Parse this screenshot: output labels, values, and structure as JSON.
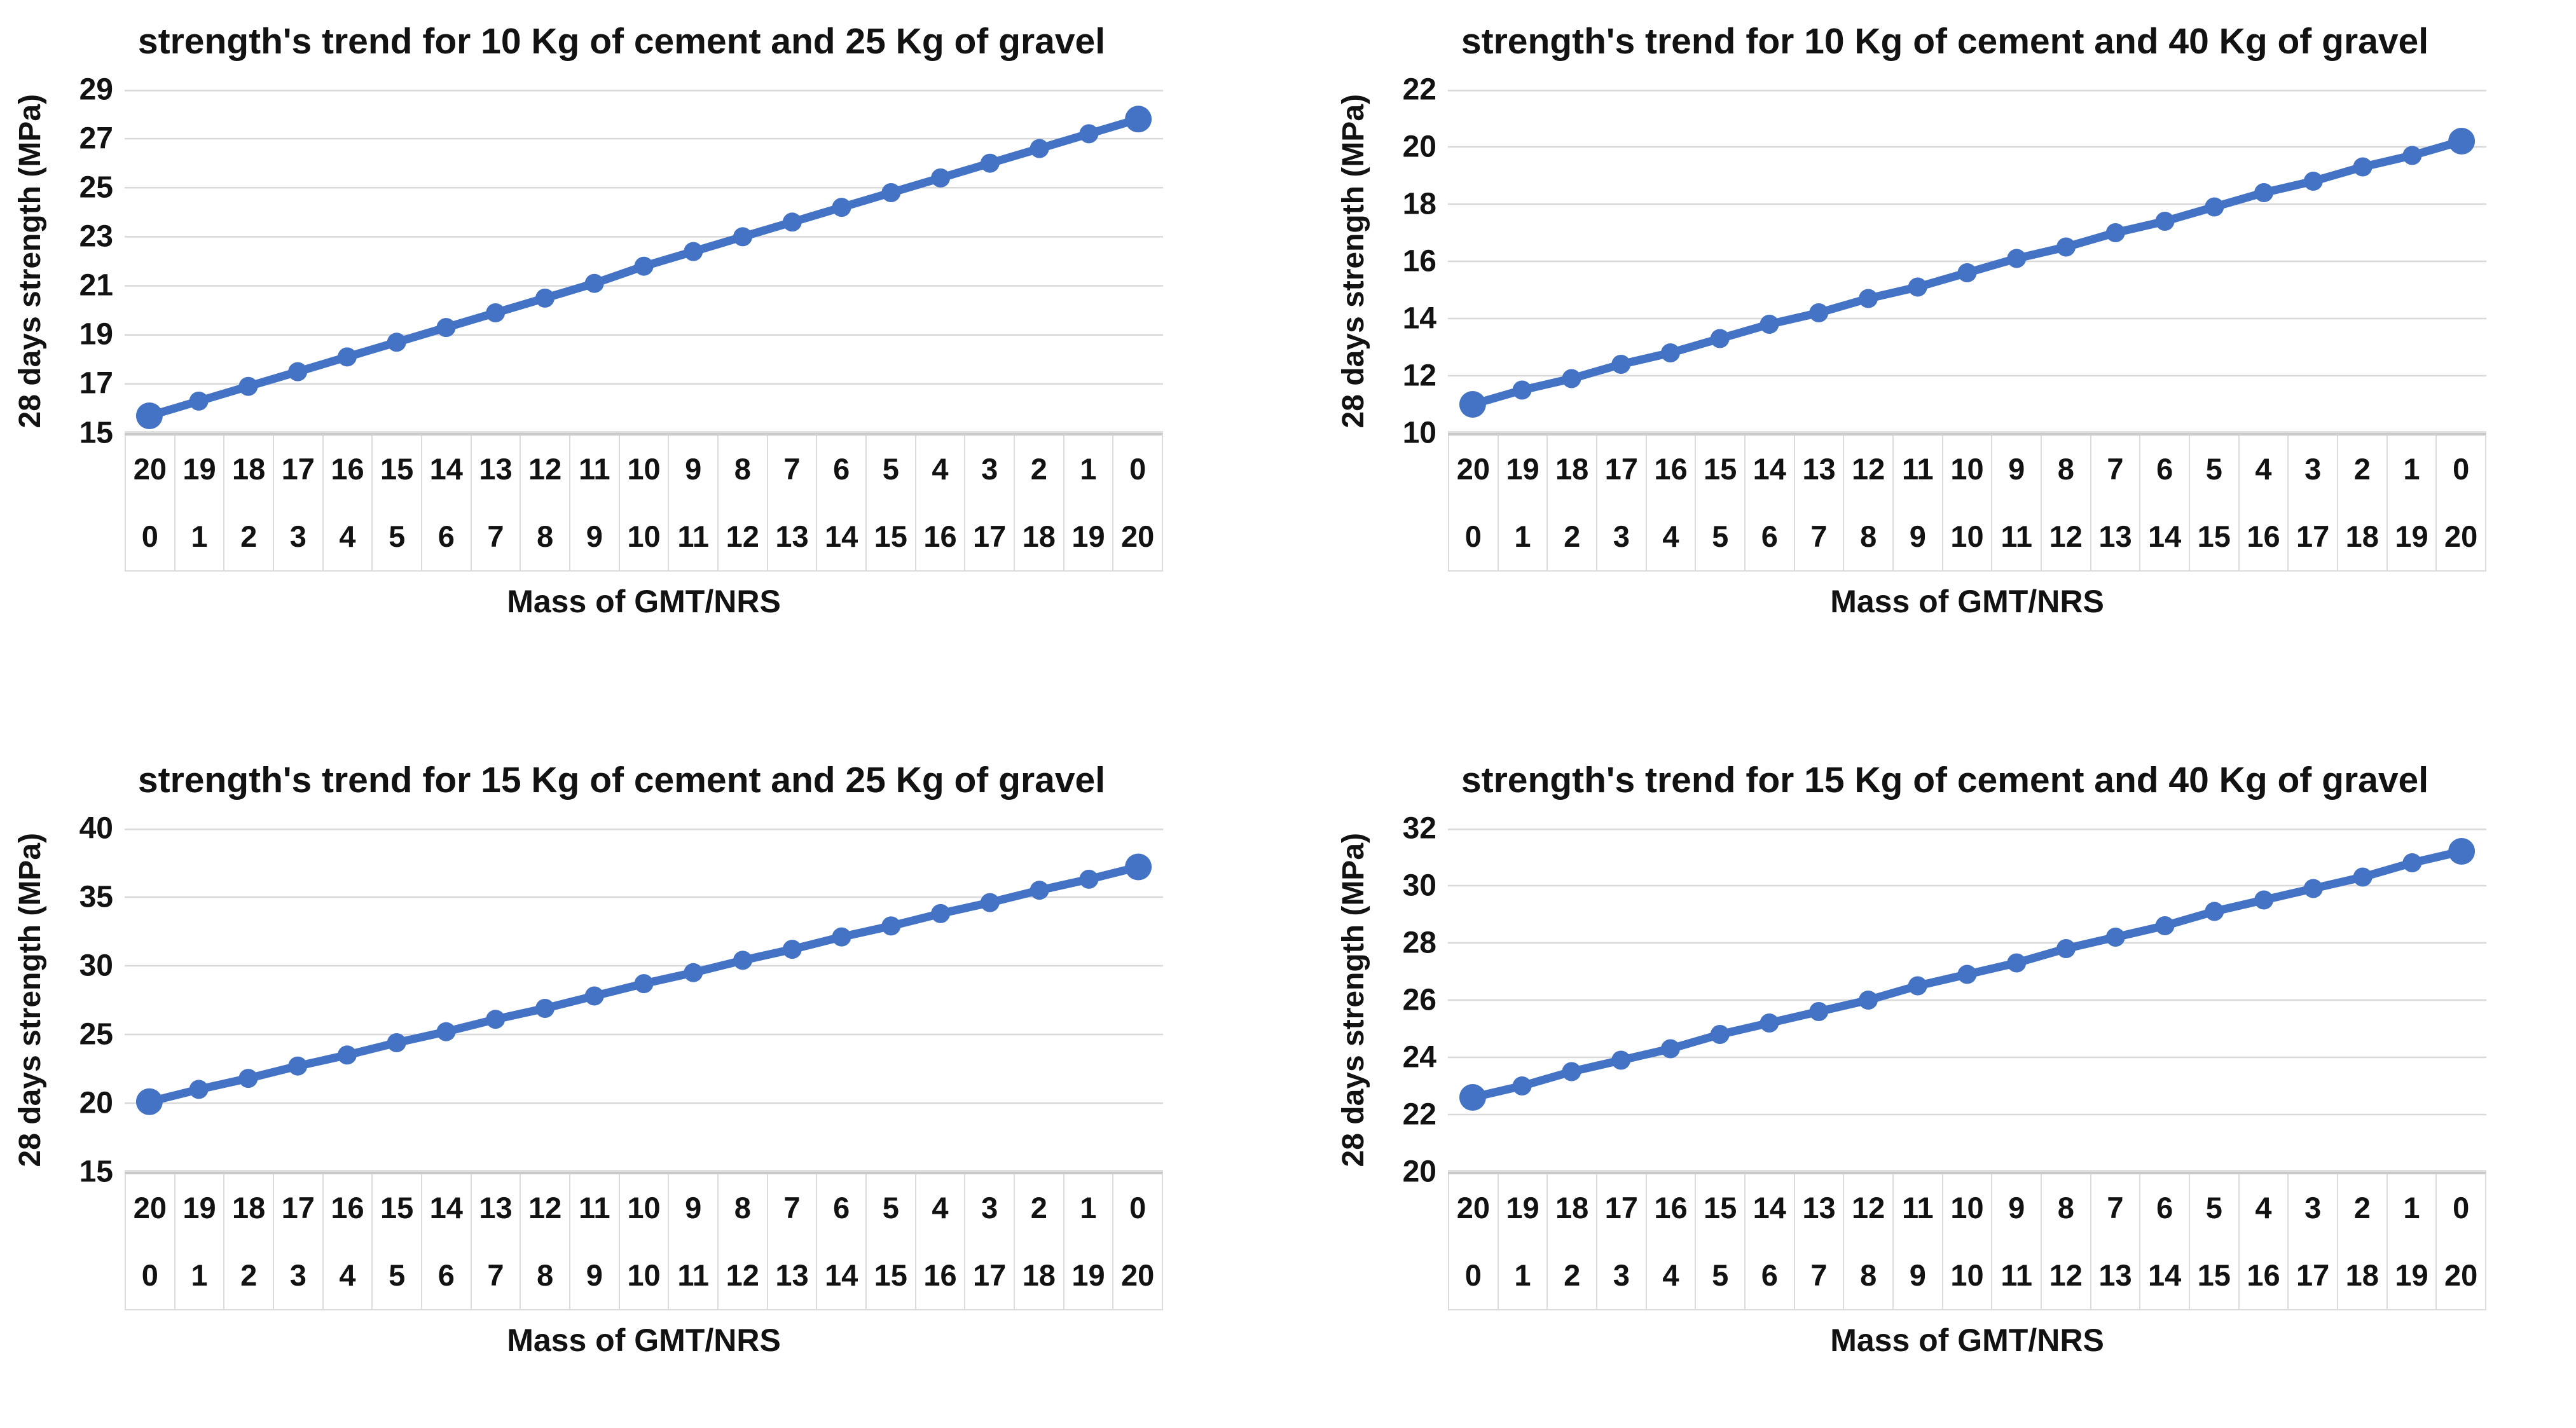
{
  "page": {
    "background_color": "#ffffff",
    "text_color": "#121212",
    "gridline_color": "#d9d9d9",
    "axis_table_border_color": "#dcdcdc",
    "line_color": "#4472C4"
  },
  "chart_data": [
    {
      "type": "line",
      "title": "strength's trend for 10 Kg of cement and 25 Kg of gravel",
      "ylabel": "28 days strength (MPa)",
      "xlabel": "Mass of GMT/NRS",
      "ylim": [
        15,
        29
      ],
      "yticks": [
        15,
        17,
        19,
        21,
        23,
        25,
        27,
        29
      ],
      "x_categories_top": [
        "20",
        "19",
        "18",
        "17",
        "16",
        "15",
        "14",
        "13",
        "12",
        "11",
        "10",
        "9",
        "8",
        "7",
        "6",
        "5",
        "4",
        "3",
        "2",
        "1",
        "0"
      ],
      "x_categories_bottom": [
        "0",
        "1",
        "2",
        "3",
        "4",
        "5",
        "6",
        "7",
        "8",
        "9",
        "10",
        "11",
        "12",
        "13",
        "14",
        "15",
        "16",
        "17",
        "18",
        "19",
        "20"
      ],
      "values": [
        15.7,
        16.3,
        16.9,
        17.5,
        18.1,
        18.7,
        19.3,
        19.9,
        20.5,
        21.1,
        21.8,
        22.4,
        23.0,
        23.6,
        24.2,
        24.8,
        25.4,
        26.0,
        26.6,
        27.2,
        27.8
      ],
      "grid": true,
      "legend": "none"
    },
    {
      "type": "line",
      "title": "strength's trend  for 10 Kg of cement and 40 Kg of gravel",
      "ylabel": "28 days strength (MPa)",
      "xlabel": "Mass of GMT/NRS",
      "ylim": [
        10,
        22
      ],
      "yticks": [
        10,
        12,
        14,
        16,
        18,
        20,
        22
      ],
      "x_categories_top": [
        "20",
        "19",
        "18",
        "17",
        "16",
        "15",
        "14",
        "13",
        "12",
        "11",
        "10",
        "9",
        "8",
        "7",
        "6",
        "5",
        "4",
        "3",
        "2",
        "1",
        "0"
      ],
      "x_categories_bottom": [
        "0",
        "1",
        "2",
        "3",
        "4",
        "5",
        "6",
        "7",
        "8",
        "9",
        "10",
        "11",
        "12",
        "13",
        "14",
        "15",
        "16",
        "17",
        "18",
        "19",
        "20"
      ],
      "values": [
        11.0,
        11.5,
        11.9,
        12.4,
        12.8,
        13.3,
        13.8,
        14.2,
        14.7,
        15.1,
        15.6,
        16.1,
        16.5,
        17.0,
        17.4,
        17.9,
        18.4,
        18.8,
        19.3,
        19.7,
        20.2
      ],
      "grid": true,
      "legend": "none"
    },
    {
      "type": "line",
      "title": "strength's trend for 15 Kg of cement and 25 Kg of gravel",
      "ylabel": "28 days strength (MPa)",
      "xlabel": "Mass of GMT/NRS",
      "ylim": [
        15,
        40
      ],
      "yticks": [
        15,
        20,
        25,
        30,
        35,
        40
      ],
      "x_categories_top": [
        "20",
        "19",
        "18",
        "17",
        "16",
        "15",
        "14",
        "13",
        "12",
        "11",
        "10",
        "9",
        "8",
        "7",
        "6",
        "5",
        "4",
        "3",
        "2",
        "1",
        "0"
      ],
      "x_categories_bottom": [
        "0",
        "1",
        "2",
        "3",
        "4",
        "5",
        "6",
        "7",
        "8",
        "9",
        "10",
        "11",
        "12",
        "13",
        "14",
        "15",
        "16",
        "17",
        "18",
        "19",
        "20"
      ],
      "values": [
        20.1,
        21.0,
        21.8,
        22.7,
        23.5,
        24.4,
        25.2,
        26.1,
        26.9,
        27.8,
        28.7,
        29.5,
        30.4,
        31.2,
        32.1,
        32.9,
        33.8,
        34.6,
        35.5,
        36.3,
        37.2
      ],
      "grid": true,
      "legend": "none"
    },
    {
      "type": "line",
      "title": "strength's trend for 15 Kg of cement and 40 Kg of gravel",
      "ylabel": "28 days strength (MPa)",
      "xlabel": "Mass of GMT/NRS",
      "ylim": [
        20,
        32
      ],
      "yticks": [
        20,
        22,
        24,
        26,
        28,
        30,
        32
      ],
      "x_categories_top": [
        "20",
        "19",
        "18",
        "17",
        "16",
        "15",
        "14",
        "13",
        "12",
        "11",
        "10",
        "9",
        "8",
        "7",
        "6",
        "5",
        "4",
        "3",
        "2",
        "1",
        "0"
      ],
      "x_categories_bottom": [
        "0",
        "1",
        "2",
        "3",
        "4",
        "5",
        "6",
        "7",
        "8",
        "9",
        "10",
        "11",
        "12",
        "13",
        "14",
        "15",
        "16",
        "17",
        "18",
        "19",
        "20"
      ],
      "values": [
        22.6,
        23.0,
        23.5,
        23.9,
        24.3,
        24.8,
        25.2,
        25.6,
        26.0,
        26.5,
        26.9,
        27.3,
        27.8,
        28.2,
        28.6,
        29.1,
        29.5,
        29.9,
        30.3,
        30.8,
        31.2
      ],
      "grid": true,
      "legend": "none"
    }
  ]
}
